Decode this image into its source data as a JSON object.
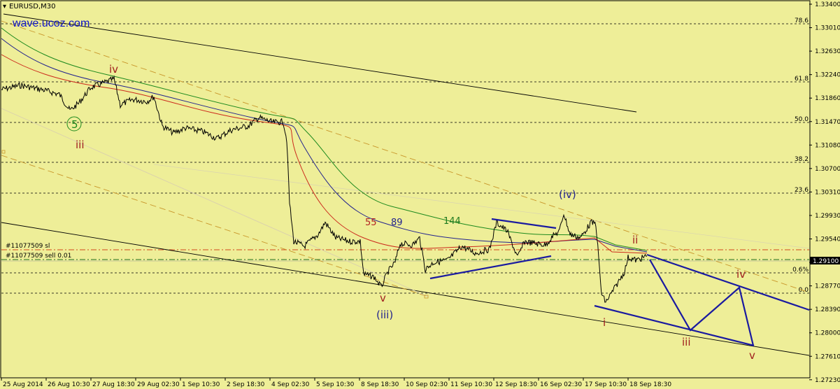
{
  "chart": {
    "symbol_label": "EURUSD,M30",
    "watermark": "wave.ucoz.com",
    "current_price": "1.29100",
    "price_ticks": [
      "1.33400",
      "1.33010",
      "1.32630",
      "1.32240",
      "1.31860",
      "1.31470",
      "1.31080",
      "1.30700",
      "1.30310",
      "1.29930",
      "1.29540",
      "1.29150",
      "1.28770",
      "1.28390",
      "1.28000",
      "1.27610",
      "1.27230"
    ],
    "time_ticks": [
      "25 Aug 2014",
      "26 Aug 10:30",
      "27 Aug 18:30",
      "29 Aug 02:30",
      "1 Sep 10:30",
      "2 Sep 18:30",
      "4 Sep 02:30",
      "5 Sep 10:30",
      "8 Sep 18:30",
      "10 Sep 02:30",
      "11 Sep 10:30",
      "12 Sep 18:30",
      "16 Sep 02:30",
      "17 Sep 10:30",
      "18 Sep 18:30"
    ],
    "fib_levels": [
      "78.6",
      "61.8",
      "50.0",
      "38.2",
      "23.6",
      "0.6%",
      "0.0"
    ],
    "orders": [
      "#11077509 sl",
      "#11077509 sell 0.01"
    ],
    "ma_labels": [
      {
        "text": "55",
        "color": "#b22222"
      },
      {
        "text": "89",
        "color": "#23238e"
      },
      {
        "text": "144",
        "color": "#1f7a1f"
      }
    ],
    "wave_labels": {
      "red_iv": "iv",
      "red_iii_top": "iii",
      "red_v": "v",
      "blue_iv": "(iv)",
      "blue_iii": "(iii)",
      "green_5": "5",
      "red_ii": "ii",
      "red_i": "i",
      "future_iv": "iv",
      "future_iii": "iii",
      "future_v": "v"
    },
    "colors": {
      "background": "#eeee98",
      "price": "#000000",
      "ma55": "#cc2a1c",
      "ma89": "#23238e",
      "ma144": "#1e8a1e",
      "channel_dashed": "#c8962a",
      "projection": "#1a1aa0",
      "wave_red": "#a01e1e",
      "wave_blue": "#23238e"
    }
  }
}
